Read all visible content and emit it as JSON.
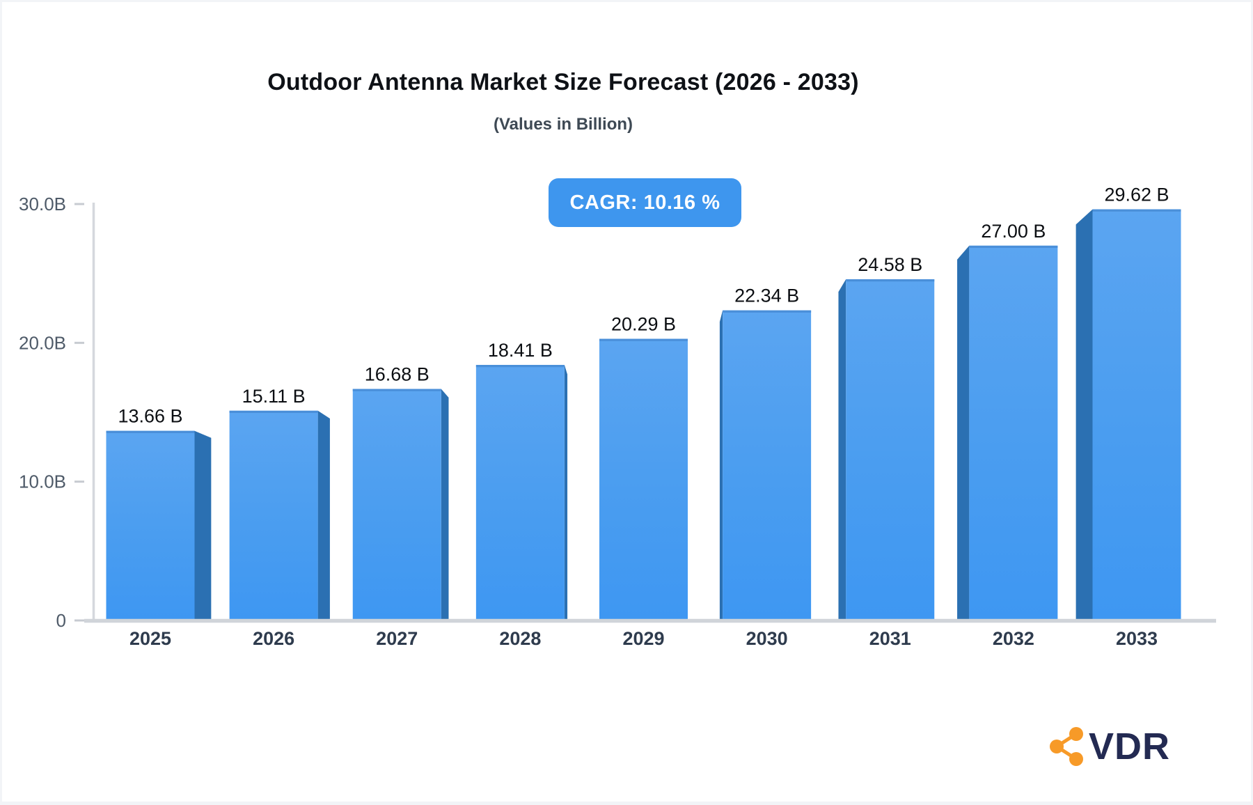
{
  "frame": {
    "border_color": "#f2f4f7"
  },
  "chart_data": {
    "type": "bar",
    "title": "Outdoor Antenna Market Size Forecast (2026 - 2033)",
    "subtitle": "(Values in Billion)",
    "cagr_label": "CAGR: 10.16 %",
    "cagr_percent": 10.16,
    "categories": [
      "2025",
      "2026",
      "2027",
      "2028",
      "2029",
      "2030",
      "2031",
      "2032",
      "2033"
    ],
    "values": [
      13.66,
      15.11,
      16.68,
      18.41,
      20.29,
      22.34,
      24.58,
      27.0,
      29.62
    ],
    "value_labels": [
      "13.66 B",
      "15.11 B",
      "16.68 B",
      "18.41 B",
      "20.29 B",
      "22.34 B",
      "24.58 B",
      "27.00 B",
      "29.62 B"
    ],
    "xlabel": "",
    "ylabel": "",
    "ylim": [
      0,
      30
    ],
    "yticks": [
      {
        "v": 0,
        "label": "0"
      },
      {
        "v": 10,
        "label": "10.0B"
      },
      {
        "v": 20,
        "label": "20.0B"
      },
      {
        "v": 30,
        "label": "30.0B"
      }
    ],
    "grid": false,
    "legend_position": "none",
    "perspective_3d": true,
    "colors": {
      "face_top": "#5BA5F1",
      "face_mid": "#4A9DF0",
      "face_bottom": "#3E97F2",
      "face_top_edge": "#4A8FD9",
      "side_panel": "#2B70B2",
      "axis_line": "#D5D8DD",
      "baseline": "#D0D4D9",
      "tick_dash": "#C7CBD1",
      "tick_label": "#4E5A68",
      "category_label": "#2E3B4D",
      "value_label": "#0B0E12",
      "badge_bg": "#3E96EE",
      "badge_text": "#FFFFFF"
    }
  },
  "logo": {
    "text": "VDR",
    "icon": "share-network-icon",
    "icon_color": "#F79A28",
    "text_color": "#232A52"
  }
}
